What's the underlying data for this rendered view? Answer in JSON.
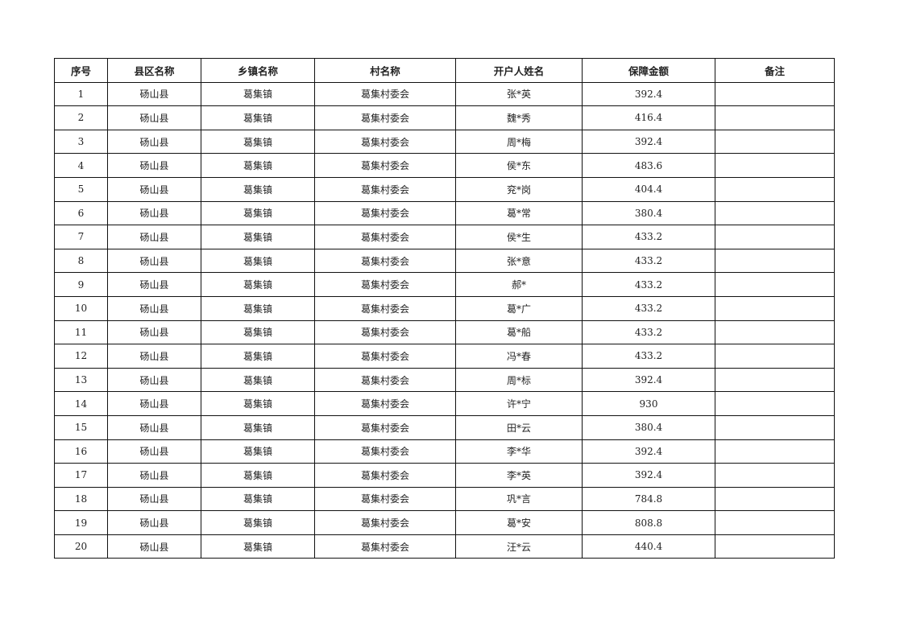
{
  "table": {
    "headers": [
      "序号",
      "县区名称",
      "乡镇名称",
      "村名称",
      "开户人姓名",
      "保障金额",
      "备注"
    ],
    "rows": [
      [
        "1",
        "砀山县",
        "葛集镇",
        "葛集村委会",
        "张*英",
        "392.4",
        ""
      ],
      [
        "2",
        "砀山县",
        "葛集镇",
        "葛集村委会",
        "魏*秀",
        "416.4",
        ""
      ],
      [
        "3",
        "砀山县",
        "葛集镇",
        "葛集村委会",
        "周*梅",
        "392.4",
        ""
      ],
      [
        "4",
        "砀山县",
        "葛集镇",
        "葛集村委会",
        "侯*东",
        "483.6",
        ""
      ],
      [
        "5",
        "砀山县",
        "葛集镇",
        "葛集村委会",
        "兖*岗",
        "404.4",
        ""
      ],
      [
        "6",
        "砀山县",
        "葛集镇",
        "葛集村委会",
        "葛*常",
        "380.4",
        ""
      ],
      [
        "7",
        "砀山县",
        "葛集镇",
        "葛集村委会",
        "侯*生",
        "433.2",
        ""
      ],
      [
        "8",
        "砀山县",
        "葛集镇",
        "葛集村委会",
        "张*意",
        "433.2",
        ""
      ],
      [
        "9",
        "砀山县",
        "葛集镇",
        "葛集村委会",
        "郝*",
        "433.2",
        ""
      ],
      [
        "10",
        "砀山县",
        "葛集镇",
        "葛集村委会",
        "葛*广",
        "433.2",
        ""
      ],
      [
        "11",
        "砀山县",
        "葛集镇",
        "葛集村委会",
        "葛*船",
        "433.2",
        ""
      ],
      [
        "12",
        "砀山县",
        "葛集镇",
        "葛集村委会",
        "冯*春",
        "433.2",
        ""
      ],
      [
        "13",
        "砀山县",
        "葛集镇",
        "葛集村委会",
        "周*标",
        "392.4",
        ""
      ],
      [
        "14",
        "砀山县",
        "葛集镇",
        "葛集村委会",
        "许*宁",
        "930",
        ""
      ],
      [
        "15",
        "砀山县",
        "葛集镇",
        "葛集村委会",
        "田*云",
        "380.4",
        ""
      ],
      [
        "16",
        "砀山县",
        "葛集镇",
        "葛集村委会",
        "李*华",
        "392.4",
        ""
      ],
      [
        "17",
        "砀山县",
        "葛集镇",
        "葛集村委会",
        "李*英",
        "392.4",
        ""
      ],
      [
        "18",
        "砀山县",
        "葛集镇",
        "葛集村委会",
        "巩*言",
        "784.8",
        ""
      ],
      [
        "19",
        "砀山县",
        "葛集镇",
        "葛集村委会",
        "葛*安",
        "808.8",
        ""
      ],
      [
        "20",
        "砀山县",
        "葛集镇",
        "葛集村委会",
        "汪*云",
        "440.4",
        ""
      ]
    ]
  }
}
